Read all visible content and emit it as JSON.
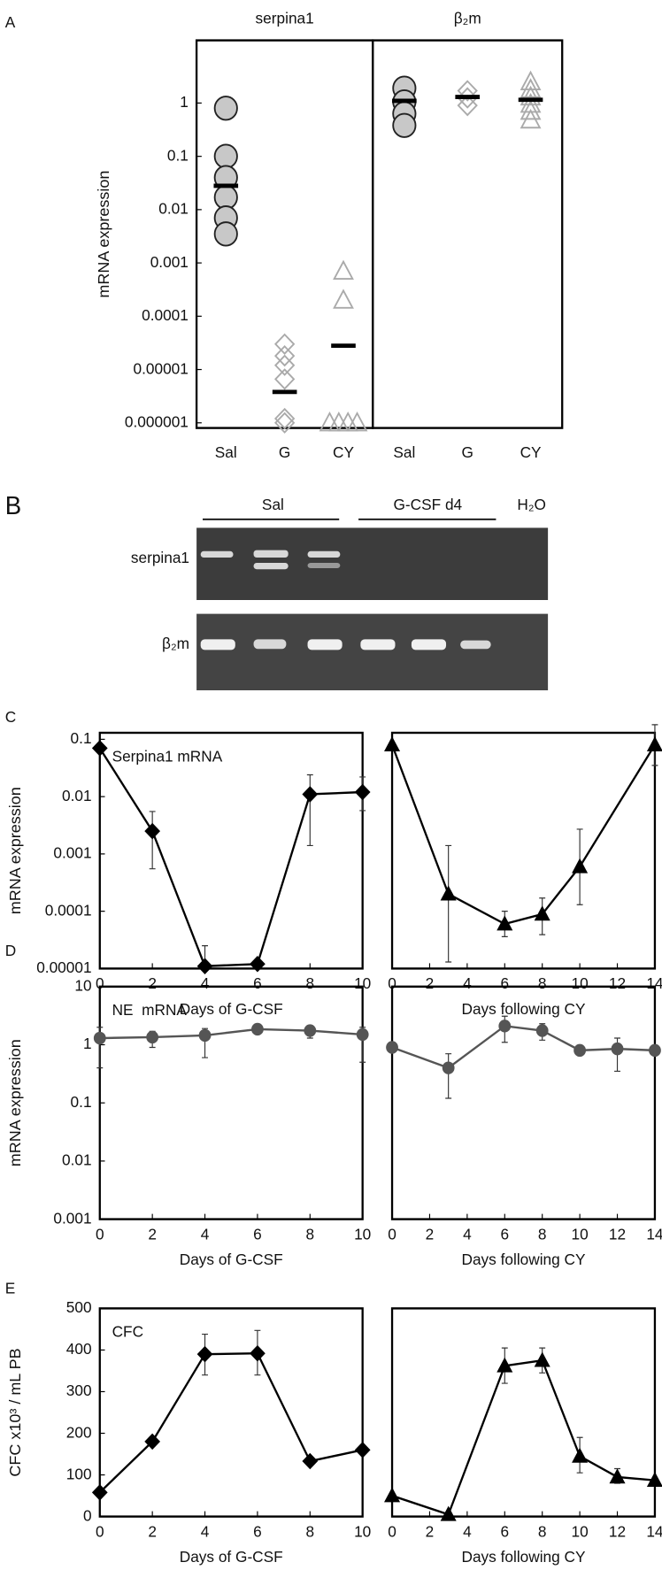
{
  "chart_data": [
    {
      "type": "strip",
      "panel": "A",
      "title": "serpina1",
      "y_label": "mRNA expression",
      "log_y": true,
      "ylim": [
        8e-07,
        15
      ],
      "yticks": [
        1,
        0.1,
        0.01,
        0.001,
        0.0001,
        1e-05,
        1e-06
      ],
      "categories": [
        "Sal",
        "G",
        "CY"
      ],
      "markers": [
        "circle",
        "diamond",
        "triangle"
      ],
      "colors": [
        "#c8c8c8",
        "#aaaaaa",
        "#aaaaaa"
      ],
      "values": [
        [
          0.8,
          0.1,
          0.04,
          0.017,
          0.007,
          0.0035
        ],
        [
          3e-05,
          1.8e-05,
          1.2e-05,
          6.6e-06,
          1.2e-06,
          1e-06
        ],
        [
          0.0007,
          0.0002,
          1e-06,
          1e-06,
          1e-06,
          1e-06
        ]
      ],
      "means": [
        0.028,
        3.8e-06,
        2.8e-05
      ]
    },
    {
      "type": "strip",
      "title": "β₂m",
      "log_y": true,
      "ylim": [
        8e-07,
        15
      ],
      "categories": [
        "Sal",
        "G",
        "CY"
      ],
      "markers": [
        "circle",
        "diamond",
        "triangle"
      ],
      "colors": [
        "#c8c8c8",
        "#aaaaaa",
        "#aaaaaa"
      ],
      "values": [
        [
          1.9,
          1.05,
          0.63,
          0.38
        ],
        [
          1.7,
          1.25,
          0.9
        ],
        [
          2.5,
          1.8,
          1.3,
          0.95,
          0.7,
          0.48
        ]
      ],
      "means": [
        1.1,
        1.3,
        1.15
      ]
    },
    {
      "type": "line",
      "panel": "C",
      "annotation": "Serpina1 mRNA",
      "y_label": "mRNA expression",
      "x_label": "Days of G-CSF",
      "log_y": true,
      "xlim": [
        0,
        10
      ],
      "ylim": [
        1e-05,
        0.13
      ],
      "xticks": [
        0,
        2,
        4,
        6,
        8,
        10
      ],
      "yticks": [
        0.1,
        0.01,
        0.001,
        0.0001,
        1e-05
      ],
      "marker": "diamond",
      "color": "#000000",
      "x": [
        0,
        2,
        4,
        6,
        8,
        10
      ],
      "values": [
        0.07,
        0.0025,
        1.1e-05,
        1.2e-05,
        0.011,
        0.012
      ],
      "yerr": [
        null,
        [
          0.00055,
          0.0055
        ],
        [
          1e-05,
          2.5e-05
        ],
        null,
        [
          0.0014,
          0.024
        ],
        [
          0.0057,
          0.022
        ]
      ]
    },
    {
      "type": "line",
      "x_label": "Days following CY",
      "log_y": true,
      "xlim": [
        0,
        14
      ],
      "ylim": [
        1e-05,
        0.13
      ],
      "xticks": [
        0,
        2,
        4,
        6,
        8,
        10,
        12,
        14
      ],
      "marker": "triangle",
      "color": "#000000",
      "x": [
        0,
        3,
        6,
        8,
        10,
        14
      ],
      "values": [
        0.08,
        0.0002,
        6e-05,
        8.9e-05,
        0.0006,
        0.08
      ],
      "yerr": [
        null,
        [
          1.3e-05,
          0.0014
        ],
        [
          3.6e-05,
          0.0001
        ],
        [
          3.9e-05,
          0.00017
        ],
        [
          0.00013,
          0.0027
        ],
        [
          0.035,
          0.18
        ]
      ]
    },
    {
      "type": "line",
      "panel": "D",
      "annotation": "NE  mRNA",
      "y_label": "mRNA expression",
      "x_label": "Days of G-CSF",
      "log_y": true,
      "xlim": [
        0,
        10
      ],
      "ylim": [
        0.001,
        10
      ],
      "xticks": [
        0,
        2,
        4,
        6,
        8,
        10
      ],
      "yticks": [
        10,
        1,
        0.1,
        0.01,
        0.001
      ],
      "marker": "circle",
      "color": "#555555",
      "x": [
        0,
        2,
        4,
        6,
        8,
        10
      ],
      "values": [
        1.3,
        1.35,
        1.45,
        1.85,
        1.75,
        1.5
      ],
      "yerr": [
        [
          0.4,
          2
        ],
        [
          0.9,
          1.7
        ],
        [
          0.6,
          1.9
        ],
        [
          1.6,
          2.1
        ],
        [
          1.3,
          2
        ],
        [
          0.5,
          2
        ]
      ]
    },
    {
      "type": "line",
      "x_label": "Days following CY",
      "log_y": true,
      "xlim": [
        0,
        14
      ],
      "ylim": [
        0.001,
        10
      ],
      "xticks": [
        0,
        2,
        4,
        6,
        8,
        10,
        12,
        14
      ],
      "marker": "circle",
      "color": "#555555",
      "x": [
        0,
        3,
        6,
        8,
        10,
        12,
        14
      ],
      "values": [
        0.9,
        0.4,
        2.1,
        1.75,
        0.8,
        0.85,
        0.8
      ],
      "yerr": [
        null,
        [
          0.12,
          0.7
        ],
        [
          1.1,
          3.1
        ],
        [
          1.2,
          2.3
        ],
        [
          0.7,
          0.95
        ],
        [
          0.35,
          1.3
        ],
        null
      ]
    },
    {
      "type": "line",
      "panel": "E",
      "annotation": "CFC",
      "y_label": "CFC x10³ / mL PB",
      "x_label": "Days of G-CSF",
      "xlim": [
        0,
        10
      ],
      "ylim": [
        0,
        500
      ],
      "xticks": [
        0,
        2,
        4,
        6,
        8,
        10
      ],
      "yticks": [
        0,
        100,
        200,
        300,
        400,
        500
      ],
      "marker": "diamond",
      "color": "#000000",
      "x": [
        0,
        2,
        4,
        6,
        8,
        10
      ],
      "values": [
        58,
        180,
        390,
        392,
        133,
        160
      ],
      "yerr": [
        null,
        null,
        [
          340,
          438
        ],
        [
          340,
          447
        ],
        null,
        null
      ]
    },
    {
      "type": "line",
      "x_label": "Days following CY",
      "xlim": [
        0,
        14
      ],
      "ylim": [
        0,
        500
      ],
      "xticks": [
        0,
        2,
        4,
        6,
        8,
        10,
        12,
        14
      ],
      "marker": "triangle",
      "color": "#000000",
      "x": [
        0,
        3,
        6,
        8,
        10,
        12,
        14
      ],
      "values": [
        50,
        5,
        362,
        375,
        145,
        95,
        87
      ],
      "yerr": [
        null,
        null,
        [
          320,
          405
        ],
        [
          345,
          405
        ],
        [
          105,
          190
        ],
        [
          80,
          115
        ],
        null
      ]
    }
  ],
  "gel": {
    "panel": "B",
    "groups": [
      "Sal",
      "G-CSF d4",
      "H₂O"
    ],
    "rows": [
      "serpina1",
      "β₂m"
    ]
  }
}
